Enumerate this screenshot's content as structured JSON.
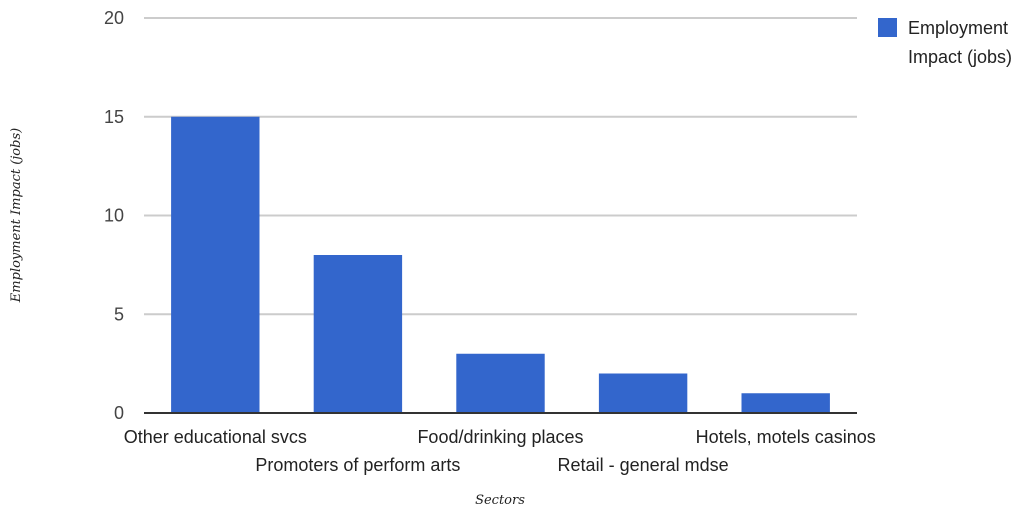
{
  "chart_data": {
    "type": "bar",
    "title": "",
    "xlabel": "Sectors",
    "ylabel": "Employment Impact (jobs)",
    "ylim": [
      0,
      20
    ],
    "yticks": [
      0,
      5,
      10,
      15,
      20
    ],
    "grid": true,
    "legend_position": "top-right",
    "categories": [
      "Other educational svcs",
      "Promoters of perform arts",
      "Food/drinking places",
      "Retail - general mdse",
      "Hotels, motels casinos"
    ],
    "series": [
      {
        "name": "Employment Impact (jobs)",
        "legend_lines": [
          "Employment",
          "Impact (jobs)"
        ],
        "color": "#3366cc",
        "values": [
          15,
          8,
          3,
          2,
          1
        ]
      }
    ]
  },
  "colors": {
    "bar": "#3366cc",
    "grid": "#cccccc",
    "baseline": "#333333"
  }
}
